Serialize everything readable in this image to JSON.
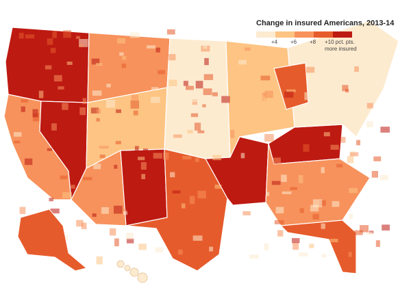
{
  "legend": {
    "title": "Change in insured Americans, 2013-14",
    "ticks": [
      "+4",
      "+6",
      "+8",
      "+10 pct. pts.",
      "more insured"
    ],
    "colors": [
      "#fdebd0",
      "#fdc483",
      "#f7925c",
      "#e65b2c",
      "#bd1a12"
    ]
  },
  "map": {
    "background": "#ffffff",
    "border_color": "#ffffff",
    "regions": [
      {
        "region": "Pacific Northwest",
        "level": 5
      },
      {
        "region": "California",
        "level": 3
      },
      {
        "region": "Nevada",
        "level": 5
      },
      {
        "region": "Arizona",
        "level": 3
      },
      {
        "region": "New Mexico",
        "level": 5
      },
      {
        "region": "Texas",
        "level": 4
      },
      {
        "region": "Northern Rockies",
        "level": 3
      },
      {
        "region": "Central Rockies",
        "level": 2
      },
      {
        "region": "Great Plains",
        "level": 1
      },
      {
        "region": "Upper Midwest",
        "level": 2
      },
      {
        "region": "Arkansas Delta",
        "level": 5
      },
      {
        "region": "Kentucky",
        "level": 5
      },
      {
        "region": "Southeast",
        "level": 3
      },
      {
        "region": "Florida",
        "level": 4
      },
      {
        "region": "Northeast",
        "level": 1
      },
      {
        "region": "Michigan",
        "level": 4
      },
      {
        "region": "Alaska",
        "level": 4
      },
      {
        "region": "Hawaii",
        "level": 1
      }
    ]
  }
}
